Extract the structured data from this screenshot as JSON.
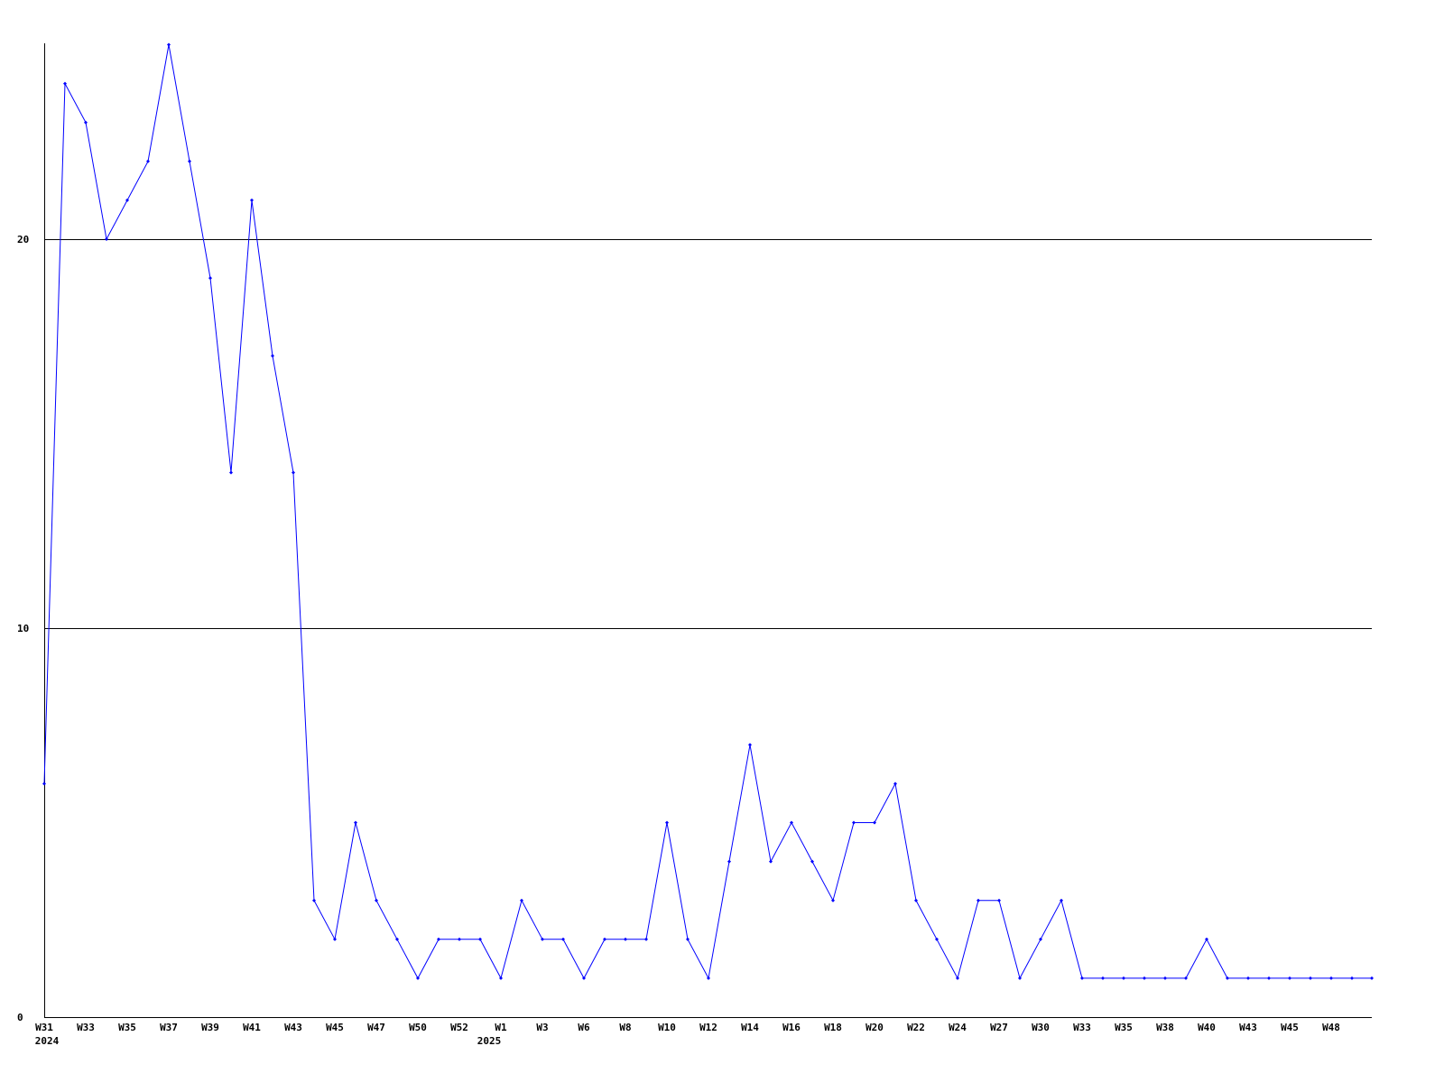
{
  "chart_data": {
    "type": "line",
    "title": "",
    "xlabel": "",
    "ylabel": "",
    "ylim": [
      0,
      25
    ],
    "yticks": [
      "0",
      "10",
      "20"
    ],
    "grid": "horizontal lines at 10 and 20",
    "legend": "none",
    "line_color": "#0000ff",
    "x_tick_labels": [
      "W31",
      "W33",
      "W35",
      "W37",
      "W39",
      "W41",
      "W43",
      "W45",
      "W47",
      "W50",
      "W52",
      "W1",
      "W3",
      "W6",
      "W8",
      "W10",
      "W12",
      "W14",
      "W16",
      "W18",
      "W20",
      "W22",
      "W24",
      "W27",
      "W30",
      "W33",
      "W35",
      "W38",
      "W40",
      "W43",
      "W45",
      "W48"
    ],
    "year_labels": [
      {
        "label": "2024",
        "tick": 0
      },
      {
        "label": "2025",
        "tick": 11
      }
    ],
    "series": [
      {
        "values": [
          6,
          24,
          23,
          20,
          21,
          22,
          25,
          22,
          19,
          14,
          21,
          17,
          14,
          3,
          2,
          5,
          3,
          2,
          1,
          2,
          2,
          2,
          1,
          3,
          2,
          2,
          1,
          2,
          2,
          2,
          5,
          2,
          1,
          4,
          7,
          4,
          5,
          4,
          3,
          5,
          5,
          6,
          3,
          2,
          1,
          3,
          3,
          1,
          2,
          3,
          1,
          1,
          1,
          1,
          1,
          1,
          2,
          1,
          1,
          1,
          1,
          1,
          1,
          1,
          1
        ]
      }
    ]
  }
}
